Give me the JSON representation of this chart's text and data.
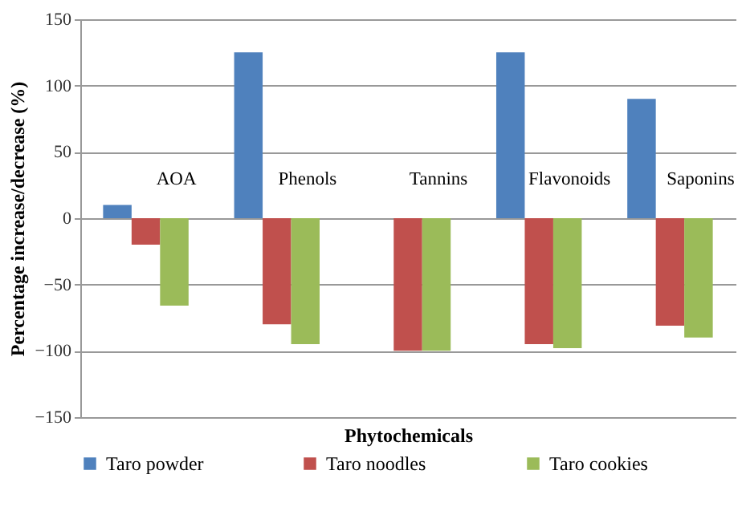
{
  "chart_data": {
    "type": "bar",
    "xlabel": "Phytochemicals",
    "ylabel": "Percentage increase/decrease  (%)",
    "categories": [
      "AOA",
      "Phenols",
      "Tannins",
      "Flavonoids",
      "Saponins"
    ],
    "series": [
      {
        "name": "Taro powder",
        "color": "#4f81bd",
        "values": [
          10,
          125,
          0,
          125,
          90
        ]
      },
      {
        "name": "Taro noodles",
        "color": "#c0504d",
        "values": [
          -20,
          -80,
          -100,
          -95,
          -81
        ]
      },
      {
        "name": "Taro cookies",
        "color": "#9bbb59",
        "values": [
          -66,
          -95,
          -100,
          -98,
          -90
        ]
      }
    ],
    "ylim": [
      -150,
      150
    ],
    "yticks": [
      -150,
      -100,
      -50,
      0,
      50,
      100,
      150
    ],
    "grid": "y",
    "legend": "bottom"
  }
}
